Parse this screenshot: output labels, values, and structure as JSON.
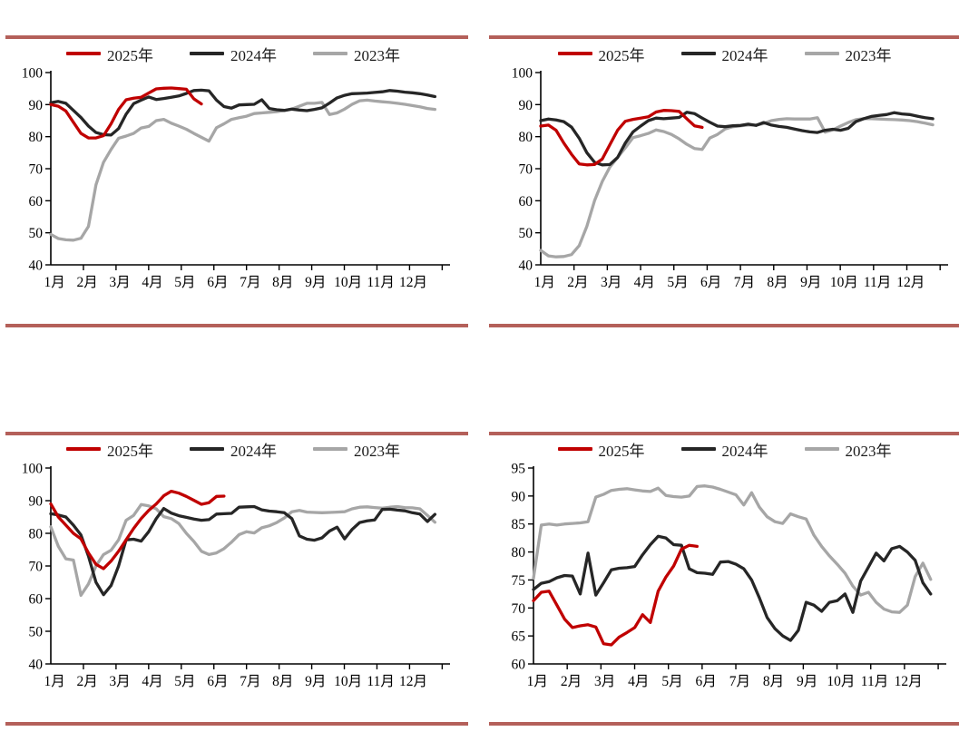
{
  "page": {
    "background": "#ffffff",
    "divider_color": "#B4605A",
    "text_color": "#000000"
  },
  "months": [
    "1月",
    "2月",
    "3月",
    "4月",
    "5月",
    "6月",
    "7月",
    "8月",
    "9月",
    "10月",
    "11月",
    "12月"
  ],
  "legend_labels": [
    "2025年",
    "2024年",
    "2023年"
  ],
  "series_colors": {
    "2025年": "#C00000",
    "2024年": "#262626",
    "2023年": "#A6A6A6"
  },
  "chart_data": [
    {
      "id": "top-left",
      "type": "line",
      "xlabel": "",
      "ylabel": "",
      "x_tick_labels": [
        "1月",
        "2月",
        "3月",
        "4月",
        "5月",
        "6月",
        "7月",
        "8月",
        "9月",
        "10月",
        "11月",
        "12月"
      ],
      "ylim": [
        40,
        100
      ],
      "yticks": [
        40,
        50,
        60,
        70,
        80,
        90,
        100
      ],
      "grid": false,
      "legend_position": "top-center",
      "series": [
        {
          "name": "2025年",
          "color": "#C00000",
          "values": [
            90,
            89.5,
            88,
            84.5,
            81,
            79.6,
            79.6,
            80.3,
            84,
            88.5,
            91.5,
            92,
            92.3,
            93.6,
            94.9,
            95.1,
            95.2,
            95,
            94.8,
            91.8,
            90.2
          ]
        },
        {
          "name": "2024年",
          "color": "#262626",
          "values": [
            90.6,
            91,
            90.4,
            88.2,
            86,
            83.3,
            81.3,
            80.6,
            80.5,
            82.5,
            87,
            90.3,
            91.4,
            92.4,
            91.6,
            91.9,
            92.3,
            92.7,
            93.5,
            94.4,
            94.5,
            94.3,
            91.4,
            89.4,
            88.9,
            89.9,
            90,
            90.1,
            91.5,
            88.8,
            88.4,
            88.2,
            88.6,
            88.3,
            88.1,
            88.5,
            89,
            90.5,
            92.1,
            92.9,
            93.4,
            93.5,
            93.6,
            93.8,
            94,
            94.4,
            94.2,
            93.9,
            93.7,
            93.4,
            93,
            92.5
          ]
        },
        {
          "name": "2023年",
          "color": "#A6A6A6",
          "values": [
            49.5,
            48.2,
            47.8,
            47.7,
            48.3,
            52,
            65,
            72,
            76,
            79.5,
            80.2,
            81,
            82.7,
            83.2,
            85,
            85.4,
            84.2,
            83.3,
            82.3,
            81,
            79.8,
            78.6,
            82.8,
            84,
            85.4,
            85.9,
            86.4,
            87.2,
            87.4,
            87.6,
            87.8,
            88.2,
            88.6,
            89.5,
            90.4,
            90.4,
            90.7,
            86.9,
            87.4,
            88.6,
            90.1,
            91.2,
            91.4,
            91.1,
            90.9,
            90.7,
            90.4,
            90.1,
            89.7,
            89.3,
            88.8,
            88.5
          ]
        }
      ]
    },
    {
      "id": "top-right",
      "type": "line",
      "xlabel": "",
      "ylabel": "",
      "x_tick_labels": [
        "1月",
        "2月",
        "3月",
        "4月",
        "5月",
        "6月",
        "7月",
        "8月",
        "9月",
        "10月",
        "11月",
        "12月"
      ],
      "ylim": [
        40,
        100
      ],
      "yticks": [
        40,
        50,
        60,
        70,
        80,
        90,
        100
      ],
      "grid": false,
      "legend_position": "top-center",
      "series": [
        {
          "name": "2025年",
          "color": "#C00000",
          "values": [
            83.3,
            83.6,
            82,
            78,
            74.5,
            71.5,
            71.2,
            71.3,
            73,
            77.5,
            82,
            84.8,
            85.4,
            85.8,
            86.2,
            87.7,
            88.2,
            88.1,
            87.9,
            85.6,
            83.4,
            82.9
          ]
        },
        {
          "name": "2024年",
          "color": "#262626",
          "values": [
            85,
            85.5,
            85.2,
            84.7,
            83,
            79.5,
            75,
            72,
            71.2,
            71.3,
            73.5,
            78,
            81.5,
            83.3,
            85,
            85.8,
            85.6,
            85.8,
            86,
            87.6,
            87.2,
            85.8,
            84.5,
            83.3,
            83.1,
            83.4,
            83.5,
            83.9,
            83.5,
            84.4,
            83.6,
            83.2,
            82.9,
            82.4,
            81.9,
            81.5,
            81.3,
            82,
            82.3,
            82,
            82.6,
            84.7,
            85.6,
            86.3,
            86.6,
            86.9,
            87.5,
            87.1,
            86.9,
            86.4,
            85.9,
            85.6
          ]
        },
        {
          "name": "2023年",
          "color": "#A6A6A6",
          "values": [
            44.5,
            42.8,
            42.5,
            42.6,
            43.2,
            46,
            52,
            60,
            66,
            70.5,
            73.5,
            76.5,
            79.7,
            80.3,
            81,
            82.1,
            81.6,
            80.7,
            79.3,
            77.6,
            76.3,
            76,
            79.6,
            80.7,
            82.4,
            83.1,
            83.4,
            83.6,
            83.6,
            84.1,
            85,
            85.4,
            85.6,
            85.5,
            85.5,
            85.5,
            85.9,
            81.4,
            82.1,
            83.3,
            84.4,
            85.3,
            85.6,
            85.6,
            85.5,
            85.4,
            85.3,
            85.2,
            85,
            84.7,
            84.2,
            83.7
          ]
        }
      ]
    },
    {
      "id": "bottom-left",
      "type": "line",
      "xlabel": "",
      "ylabel": "",
      "x_tick_labels": [
        "1月",
        "2月",
        "3月",
        "4月",
        "5月",
        "6月",
        "7月",
        "8月",
        "9月",
        "10月",
        "11月",
        "12月"
      ],
      "ylim": [
        40,
        100
      ],
      "yticks": [
        40,
        50,
        60,
        70,
        80,
        90,
        100
      ],
      "grid": false,
      "legend_position": "top-center",
      "series": [
        {
          "name": "2025年",
          "color": "#C00000",
          "values": [
            89,
            85,
            82.5,
            80,
            78.3,
            74,
            70.5,
            69.2,
            71.5,
            74.5,
            78,
            81.5,
            84.5,
            87,
            89,
            91.5,
            92.9,
            92.3,
            91.3,
            90.1,
            88.9,
            89.4,
            91.3,
            91.4
          ]
        },
        {
          "name": "2024年",
          "color": "#262626",
          "values": [
            86,
            85.6,
            85,
            82.5,
            79.5,
            73,
            65,
            61.2,
            64,
            70,
            78,
            78.2,
            77.6,
            80.5,
            84.5,
            87.6,
            86.2,
            85.4,
            84.9,
            84.4,
            84,
            84.2,
            85.9,
            86,
            86.1,
            88,
            88.1,
            88.2,
            87.2,
            86.8,
            86.6,
            86.3,
            84.5,
            79.2,
            78.2,
            77.9,
            78.6,
            80.7,
            81.9,
            78.3,
            81.2,
            83.3,
            83.8,
            84.1,
            87.3,
            87.4,
            87.1,
            86.9,
            86.3,
            85.9,
            83.6,
            85.8
          ]
        },
        {
          "name": "2023年",
          "color": "#A6A6A6",
          "values": [
            82,
            76,
            72.2,
            71.8,
            61,
            64.5,
            70,
            73.5,
            74.8,
            78,
            84,
            85.5,
            88.8,
            88.4,
            87.5,
            85.1,
            84.5,
            83,
            80,
            77.5,
            74.5,
            73.5,
            74,
            75.3,
            77.3,
            79.6,
            80.5,
            80.1,
            81.7,
            82.3,
            83.3,
            84.7,
            86.6,
            87,
            86.5,
            86.4,
            86.3,
            86.4,
            86.5,
            86.6,
            87.5,
            88,
            88.1,
            87.9,
            87.7,
            88,
            88.2,
            87.9,
            87.8,
            87.5,
            85.5,
            83.4
          ]
        }
      ]
    },
    {
      "id": "bottom-right",
      "type": "line",
      "xlabel": "",
      "ylabel": "",
      "x_tick_labels": [
        "1月",
        "2月",
        "3月",
        "4月",
        "5月",
        "6月",
        "7月",
        "8月",
        "9月",
        "10月",
        "11月",
        "12月"
      ],
      "ylim": [
        60,
        95
      ],
      "yticks": [
        60,
        65,
        70,
        75,
        80,
        85,
        90,
        95
      ],
      "grid": false,
      "legend_position": "top-center",
      "series": [
        {
          "name": "2025年",
          "color": "#C00000",
          "values": [
            71.3,
            72.8,
            73,
            70.5,
            68,
            66.5,
            66.8,
            67,
            66.6,
            63.6,
            63.4,
            64.8,
            65.6,
            66.5,
            68.8,
            67.4,
            73,
            75.5,
            77.5,
            80.5,
            81.2,
            81
          ]
        },
        {
          "name": "2024年",
          "color": "#262626",
          "values": [
            73.3,
            74.4,
            74.7,
            75.4,
            75.8,
            75.7,
            72.5,
            79.8,
            72.3,
            74.5,
            76.8,
            77.1,
            77.2,
            77.4,
            79.5,
            81.3,
            82.8,
            82.5,
            81.3,
            81.2,
            77,
            76.3,
            76.2,
            76,
            78.2,
            78.3,
            77.8,
            77,
            75,
            71.8,
            68.3,
            66.3,
            65,
            64.2,
            66,
            71,
            70.5,
            69.4,
            71,
            71.3,
            72.5,
            69.2,
            74.8,
            77.3,
            79.8,
            78.4,
            80.6,
            81,
            80,
            78.5,
            74.5,
            72.5
          ]
        },
        {
          "name": "2023年",
          "color": "#A6A6A6",
          "values": [
            75.3,
            84.8,
            85,
            84.8,
            85,
            85.1,
            85.2,
            85.4,
            89.8,
            90.3,
            91,
            91.2,
            91.3,
            91.1,
            90.9,
            90.8,
            91.4,
            90.1,
            89.9,
            89.8,
            90,
            91.7,
            91.8,
            91.6,
            91.2,
            90.7,
            90.2,
            88.4,
            90.6,
            88,
            86.3,
            85.4,
            85.1,
            86.8,
            86.3,
            85.9,
            83,
            81,
            79.3,
            77.8,
            76.2,
            73.9,
            72.3,
            72.8,
            71,
            69.8,
            69.3,
            69.2,
            70.5,
            75.6,
            78,
            75.1
          ]
        }
      ]
    }
  ]
}
